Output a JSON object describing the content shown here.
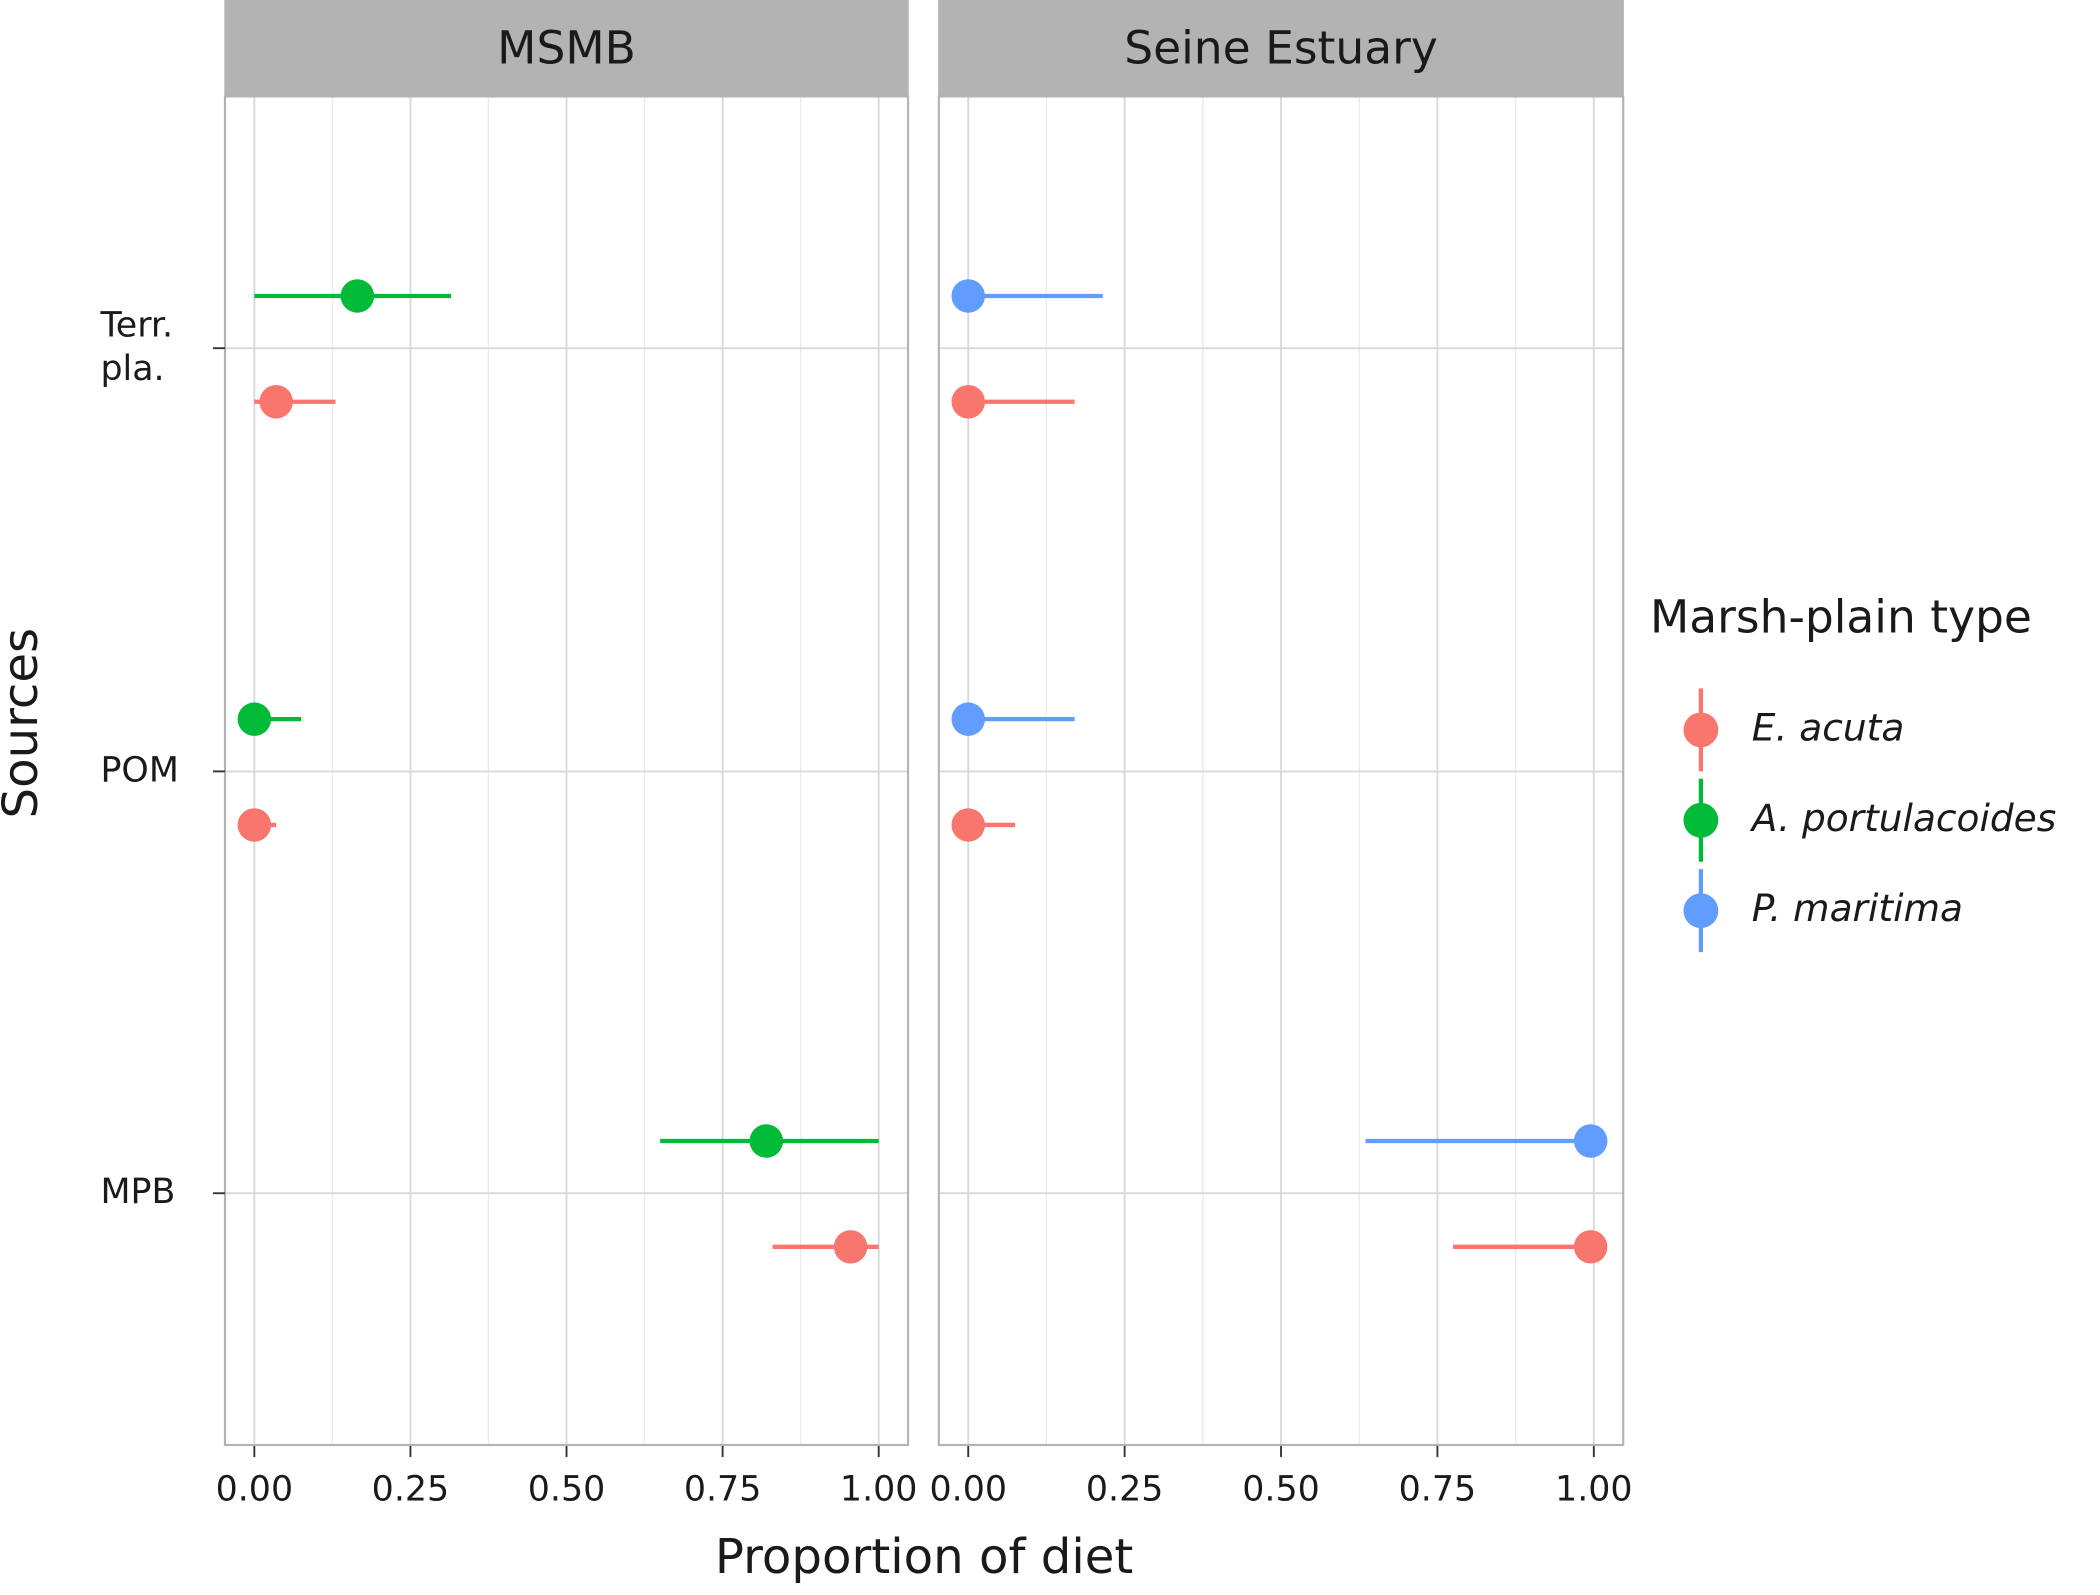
{
  "x_label": "Proportion of diet",
  "y_label": "Sources",
  "legend": {
    "title": "Marsh-plain type",
    "position": "right",
    "items": [
      {
        "name": "E. acuta",
        "color": "#F8766D"
      },
      {
        "name": "A. portulacoides",
        "color": "#00BA38"
      },
      {
        "name": "P. maritima",
        "color": "#619CFF"
      }
    ]
  },
  "chart_data": [
    {
      "type": "pointrange",
      "title": "MSMB",
      "categories": [
        "Terr.\npla.",
        "POM",
        "MPB"
      ],
      "series": [
        {
          "name": "E. acuta",
          "color": "#F8766D",
          "values": [
            0.035,
            0.0,
            0.955
          ],
          "lower": [
            0.0,
            0.0,
            0.83
          ],
          "upper": [
            0.13,
            0.035,
            1.0
          ]
        },
        {
          "name": "A. portulacoides",
          "color": "#00BA38",
          "values": [
            0.165,
            0.0,
            0.82
          ],
          "lower": [
            0.0,
            0.0,
            0.65
          ],
          "upper": [
            0.315,
            0.075,
            1.0
          ]
        }
      ],
      "xlim": [
        -0.047,
        1.047
      ],
      "xticks": [
        {
          "value": 0,
          "label": "0.00"
        },
        {
          "value": 0.25,
          "label": "0.25"
        },
        {
          "value": 0.5,
          "label": "0.50"
        },
        {
          "value": 0.75,
          "label": "0.75"
        },
        {
          "value": 1,
          "label": "1.00"
        }
      ],
      "grid": true
    },
    {
      "type": "pointrange",
      "title": "Seine Estuary",
      "categories": [
        "Terr.\npla.",
        "POM",
        "MPB"
      ],
      "series": [
        {
          "name": "E. acuta",
          "color": "#F8766D",
          "values": [
            0.0,
            0.0,
            0.995
          ],
          "lower": [
            0.0,
            0.0,
            0.775
          ],
          "upper": [
            0.17,
            0.075,
            1.0
          ]
        },
        {
          "name": "P. maritima",
          "color": "#619CFF",
          "values": [
            0.0,
            0.0,
            0.995
          ],
          "lower": [
            0.0,
            0.0,
            0.635
          ],
          "upper": [
            0.215,
            0.17,
            1.0
          ]
        }
      ],
      "xlim": [
        -0.047,
        1.047
      ],
      "xticks": [
        {
          "value": 0,
          "label": "0.00"
        },
        {
          "value": 0.25,
          "label": "0.25"
        },
        {
          "value": 0.5,
          "label": "0.50"
        },
        {
          "value": 0.75,
          "label": "0.75"
        },
        {
          "value": 1,
          "label": "1.00"
        }
      ],
      "grid": true
    }
  ]
}
